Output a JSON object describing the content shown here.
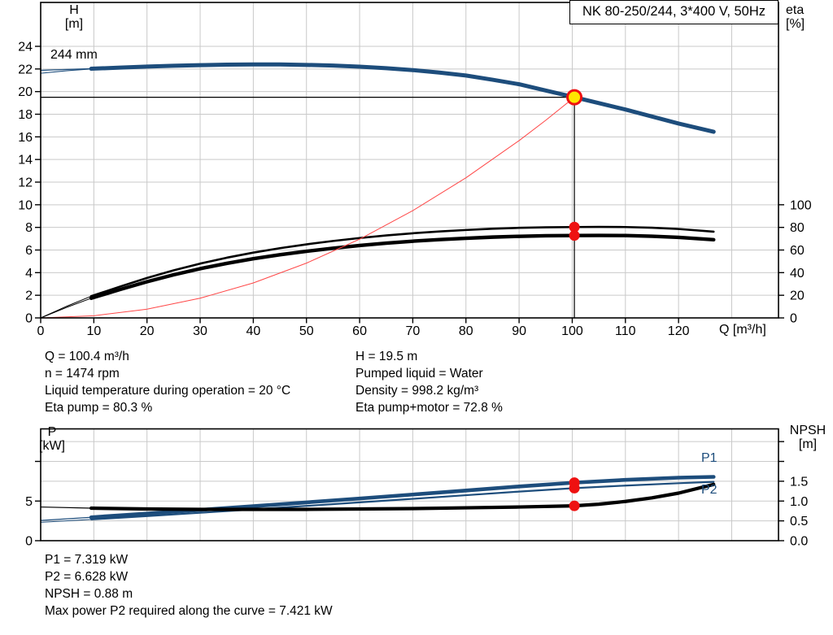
{
  "title_box": "NK 80-250/244, 3*400 V, 50Hz",
  "curve_label": "244 mm",
  "p1_label": "P1",
  "p2_label": "P2",
  "axis_labels": {
    "h": "H",
    "h_unit": "[m]",
    "eta": "eta",
    "eta_unit": "[%]",
    "q": "Q [m³/h]",
    "p": "P",
    "p_unit": "[kW]",
    "npsh": "NPSH",
    "npsh_unit": "[m]"
  },
  "colors": {
    "blue": "#1d4d7c",
    "red": "#ee1111",
    "duty_yellow": "#ffe600",
    "parabola_red": "#ff4747",
    "grid": "#c9c9c9",
    "black": "#000000"
  },
  "info_top": {
    "left": [
      "Q = 100.4 m³/h",
      "n = 1474 rpm",
      "Liquid temperature during operation = 20 °C",
      "Eta pump = 80.3 %"
    ],
    "right": [
      "H = 19.5 m",
      "Pumped liquid = Water",
      "Density = 998.2 kg/m³",
      "Eta pump+motor = 72.8 %"
    ]
  },
  "info_bottom": [
    "P1 = 7.319 kW",
    "P2 = 6.628 kW",
    "NPSH = 0.88 m",
    "Max power P2 required along the curve = 7.421 kW"
  ],
  "chart_data": [
    {
      "type": "line",
      "name": "qh-eta-chart",
      "title": "NK 80-250/244, 3*400 V, 50Hz",
      "xlabel": "Q [m³/h]",
      "ylabel_left": "H [m]",
      "ylabel_right": "eta [%]",
      "x_range": [
        0,
        138.8
      ],
      "h_range": [
        0,
        24
      ],
      "eta_range": [
        0,
        100
      ],
      "x_ticks": [
        0,
        10,
        20,
        30,
        40,
        50,
        60,
        70,
        80,
        90,
        100,
        110,
        120
      ],
      "x_gridlines": [
        10,
        20,
        30,
        40,
        50,
        60,
        70,
        80,
        90,
        100,
        110,
        120,
        130
      ],
      "h_ticks": [
        0,
        2,
        4,
        6,
        8,
        10,
        12,
        14,
        16,
        18,
        20,
        22,
        24
      ],
      "h_gridlines": [
        2,
        4,
        6,
        8,
        10,
        12,
        14,
        16,
        18,
        20,
        22,
        24
      ],
      "eta_ticks": [
        0,
        20,
        40,
        60,
        80,
        100
      ],
      "operating_point": {
        "q": 100.4,
        "h": 19.5
      },
      "series": [
        {
          "name": "head-244mm",
          "axis": "left",
          "color": "#1d4d7c",
          "thin": 1.3,
          "thick": 5,
          "thick_from": 9.5,
          "points": [
            [
              0,
              21.88
            ],
            [
              5,
              21.96
            ],
            [
              9.5,
              22.02
            ],
            [
              15,
              22.12
            ],
            [
              20,
              22.21
            ],
            [
              25,
              22.28
            ],
            [
              30,
              22.34
            ],
            [
              35,
              22.38
            ],
            [
              40,
              22.4
            ],
            [
              45,
              22.4
            ],
            [
              50,
              22.36
            ],
            [
              55,
              22.3
            ],
            [
              60,
              22.2
            ],
            [
              65,
              22.07
            ],
            [
              70,
              21.9
            ],
            [
              75,
              21.68
            ],
            [
              80,
              21.42
            ],
            [
              85,
              21.05
            ],
            [
              90,
              20.65
            ],
            [
              95,
              20.1
            ],
            [
              100.4,
              19.5
            ],
            [
              105,
              18.98
            ],
            [
              110,
              18.42
            ],
            [
              115,
              17.8
            ],
            [
              120,
              17.18
            ],
            [
              126.6,
              16.45
            ]
          ]
        },
        {
          "name": "head-tolerance",
          "axis": "left",
          "color": "#1d4d7c",
          "thin": 1.1,
          "thick": 0,
          "thick_from": 999,
          "points": [
            [
              0,
              21.62
            ],
            [
              5,
              21.85
            ],
            [
              9.5,
              22.0
            ]
          ]
        },
        {
          "name": "eta-pump",
          "axis": "right",
          "color": "#000000",
          "thin": 1,
          "thick": 2.6,
          "thick_from": 9.5,
          "points": [
            [
              0,
              0
            ],
            [
              5,
              10.5
            ],
            [
              9.5,
              19.2
            ],
            [
              15,
              27.8
            ],
            [
              20,
              35.3
            ],
            [
              25,
              42
            ],
            [
              30,
              48
            ],
            [
              35,
              53.2
            ],
            [
              40,
              57.7
            ],
            [
              45,
              61.6
            ],
            [
              50,
              65
            ],
            [
              55,
              68
            ],
            [
              60,
              70.6
            ],
            [
              65,
              72.9
            ],
            [
              70,
              74.8
            ],
            [
              75,
              76.4
            ],
            [
              80,
              77.7
            ],
            [
              85,
              78.8
            ],
            [
              90,
              79.6
            ],
            [
              95,
              80.1
            ],
            [
              100.4,
              80.3
            ],
            [
              105,
              80.45
            ],
            [
              110,
              80.3
            ],
            [
              115,
              79.7
            ],
            [
              120,
              78.6
            ],
            [
              126.6,
              76.2
            ]
          ]
        },
        {
          "name": "eta-pump-motor",
          "axis": "right",
          "color": "#000000",
          "thin": 1,
          "thick": 4.4,
          "thick_from": 9.5,
          "points": [
            [
              0,
              0
            ],
            [
              5,
              9.5
            ],
            [
              9.5,
              17.4
            ],
            [
              15,
              25.2
            ],
            [
              20,
              32
            ],
            [
              25,
              38.1
            ],
            [
              30,
              43.5
            ],
            [
              35,
              48.2
            ],
            [
              40,
              52.3
            ],
            [
              45,
              55.8
            ],
            [
              50,
              58.9
            ],
            [
              55,
              61.6
            ],
            [
              60,
              64
            ],
            [
              65,
              66.1
            ],
            [
              70,
              67.8
            ],
            [
              75,
              69.2
            ],
            [
              80,
              70.4
            ],
            [
              85,
              71.4
            ],
            [
              90,
              72.1
            ],
            [
              95,
              72.6
            ],
            [
              100.4,
              72.8
            ],
            [
              105,
              72.9
            ],
            [
              110,
              72.8
            ],
            [
              115,
              72.2
            ],
            [
              120,
              71.2
            ],
            [
              126.6,
              69.1
            ]
          ]
        },
        {
          "name": "duty-parabola",
          "axis": "left",
          "color": "#ff4747",
          "thin": 1,
          "thick": 1,
          "thick_from": 0,
          "points": [
            [
              0,
              0
            ],
            [
              10,
              0.19
            ],
            [
              20,
              0.77
            ],
            [
              30,
              1.74
            ],
            [
              40,
              3.09
            ],
            [
              50,
              4.84
            ],
            [
              60,
              6.96
            ],
            [
              70,
              9.48
            ],
            [
              80,
              12.38
            ],
            [
              90,
              15.67
            ],
            [
              95,
              17.46
            ],
            [
              100.4,
              19.5
            ]
          ]
        }
      ],
      "markers": [
        {
          "q": 100.4,
          "axis": "right",
          "value": 80.3
        },
        {
          "q": 100.4,
          "axis": "right",
          "value": 72.8
        }
      ]
    },
    {
      "type": "line",
      "name": "power-npsh-chart",
      "ylabel_left": "P [kW]",
      "ylabel_right": "NPSH [m]",
      "x_range": [
        0,
        138.8
      ],
      "p_range": [
        0,
        14.1
      ],
      "npsh_range": [
        0,
        2.82
      ],
      "x_gridlines": [
        10,
        20,
        30,
        40,
        50,
        60,
        70,
        80,
        90,
        100,
        110,
        120,
        130
      ],
      "p_ticks": [
        [
          0,
          "0"
        ],
        [
          5,
          "5"
        ],
        [
          10,
          ""
        ]
      ],
      "npsh_ticks": [
        [
          0,
          "0.0"
        ],
        [
          0.5,
          "0.5"
        ],
        [
          1,
          "1.0"
        ],
        [
          1.5,
          "1.5"
        ],
        [
          2,
          ""
        ],
        [
          2.5,
          ""
        ]
      ],
      "npsh_gridlines": [
        0.5,
        1,
        1.5,
        2,
        2.5
      ],
      "series": [
        {
          "name": "P1",
          "axis": "left",
          "color": "#1d4d7c",
          "thin": 1.2,
          "thick": 4.6,
          "thick_from": 9.5,
          "points": [
            [
              0,
              2.55
            ],
            [
              9.5,
              2.95
            ],
            [
              20,
              3.42
            ],
            [
              30,
              3.88
            ],
            [
              40,
              4.35
            ],
            [
              50,
              4.83
            ],
            [
              60,
              5.32
            ],
            [
              70,
              5.82
            ],
            [
              80,
              6.33
            ],
            [
              90,
              6.84
            ],
            [
              100.4,
              7.319
            ],
            [
              110,
              7.67
            ],
            [
              120,
              7.95
            ],
            [
              126.6,
              8.05
            ]
          ]
        },
        {
          "name": "P2",
          "axis": "left",
          "color": "#1d4d7c",
          "thin": 1,
          "thick": 2.2,
          "thick_from": 9.5,
          "points": [
            [
              0,
              2.32
            ],
            [
              9.5,
              2.68
            ],
            [
              20,
              3.1
            ],
            [
              30,
              3.52
            ],
            [
              40,
              3.95
            ],
            [
              50,
              4.39
            ],
            [
              60,
              4.83
            ],
            [
              70,
              5.28
            ],
            [
              80,
              5.74
            ],
            [
              90,
              6.19
            ],
            [
              100.4,
              6.628
            ],
            [
              110,
              6.95
            ],
            [
              120,
              7.25
            ],
            [
              126.6,
              7.42
            ]
          ]
        },
        {
          "name": "NPSH",
          "axis": "right",
          "color": "#000000",
          "thin": 1.2,
          "thick": 4.2,
          "thick_from": 9.5,
          "points": [
            [
              0,
              0.85
            ],
            [
              9.5,
              0.82
            ],
            [
              20,
              0.8
            ],
            [
              30,
              0.79
            ],
            [
              40,
              0.79
            ],
            [
              50,
              0.79
            ],
            [
              60,
              0.8
            ],
            [
              70,
              0.81
            ],
            [
              80,
              0.83
            ],
            [
              90,
              0.85
            ],
            [
              100.4,
              0.88
            ],
            [
              105,
              0.92
            ],
            [
              110,
              0.99
            ],
            [
              115,
              1.08
            ],
            [
              120,
              1.2
            ],
            [
              126.6,
              1.42
            ]
          ]
        }
      ],
      "markers": [
        {
          "q": 100.4,
          "axis": "left",
          "value": 7.319
        },
        {
          "q": 100.4,
          "axis": "left",
          "value": 6.628
        },
        {
          "q": 100.4,
          "axis": "right",
          "value": 0.88
        }
      ]
    }
  ]
}
